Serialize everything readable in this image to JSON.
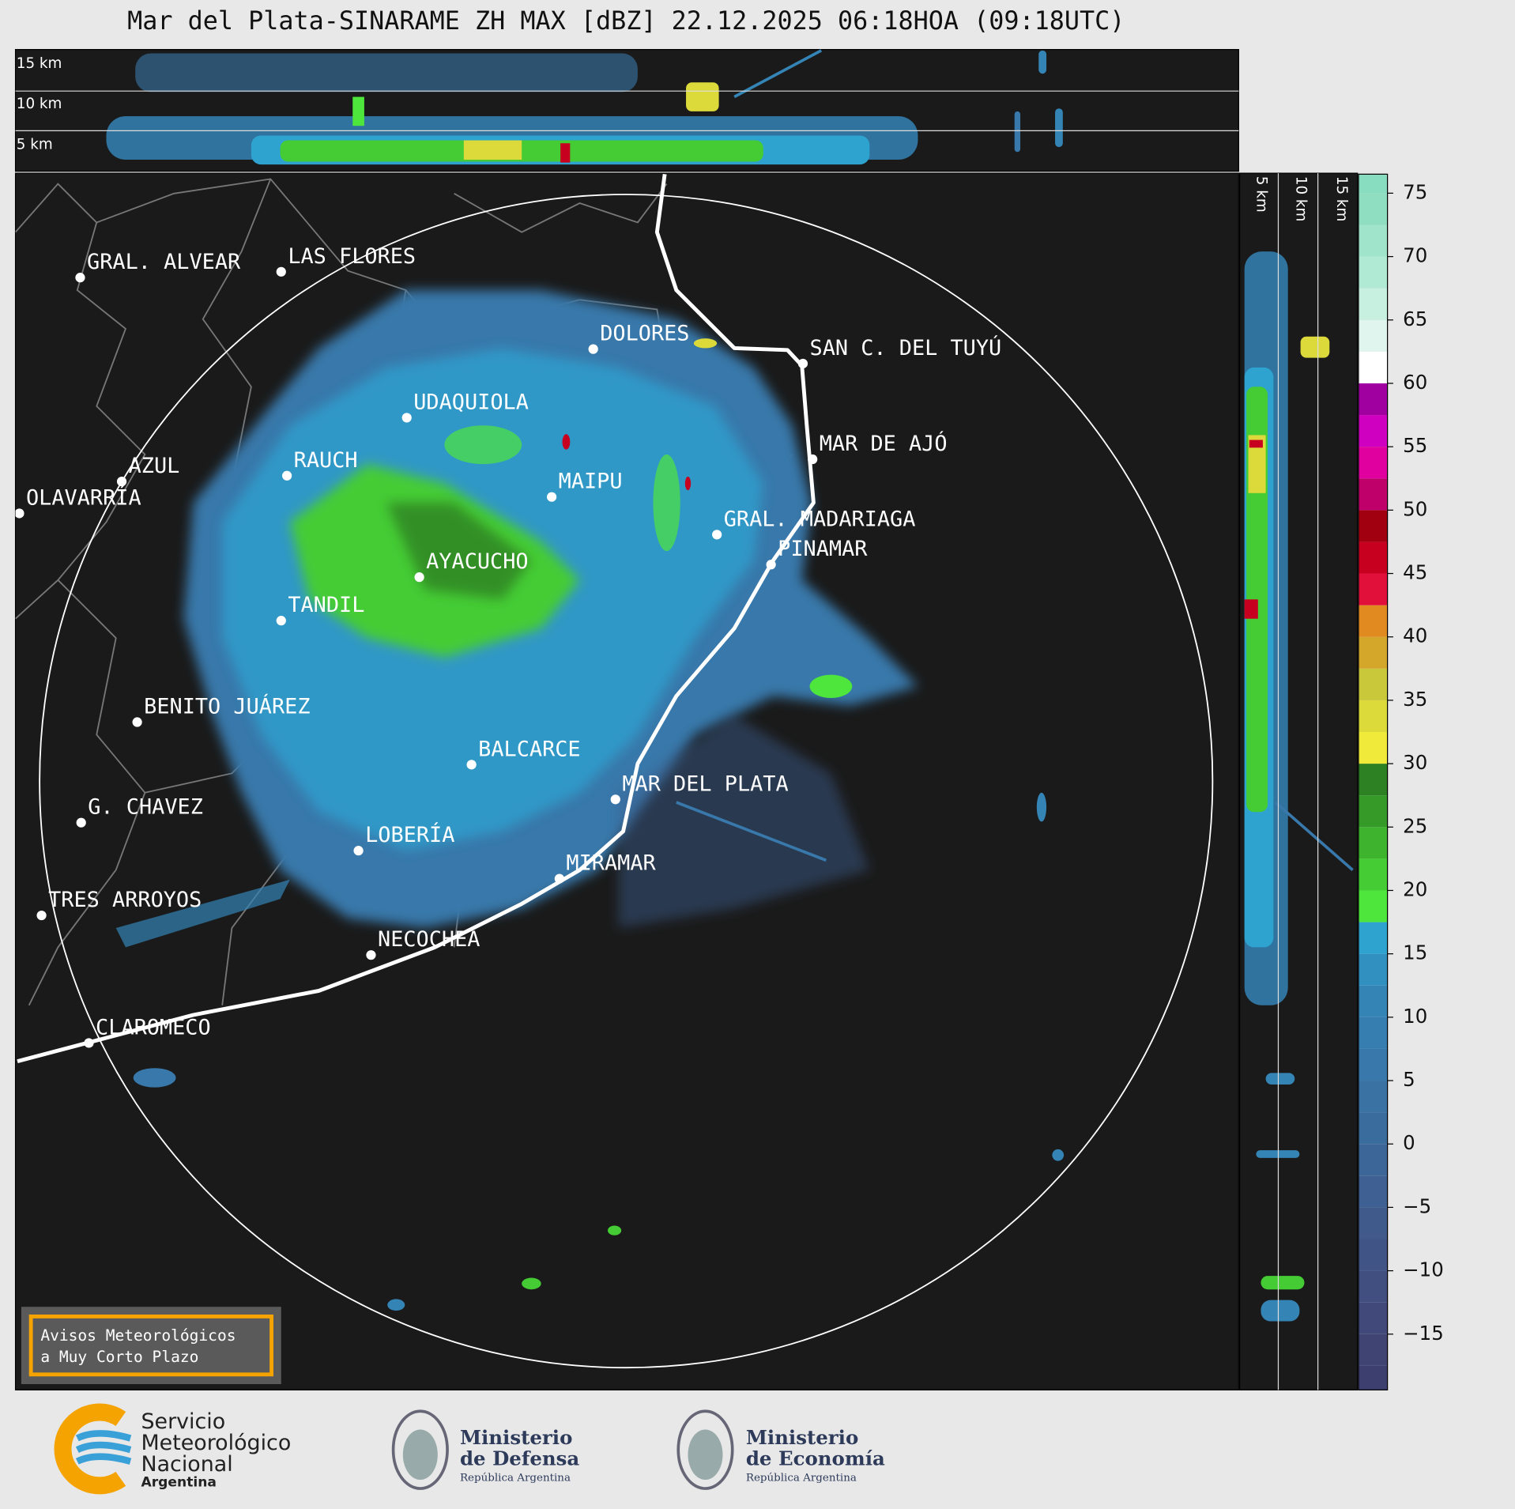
{
  "title": "Mar del Plata-SINARAME ZH MAX [dBZ] 22.12.2025 06:18HOA (09:18UTC)",
  "top_panel_labels": [
    "15 km",
    "10 km",
    "5 km"
  ],
  "side_panel_labels": [
    "5 km",
    "10 km",
    "15 km"
  ],
  "cities": [
    "GRAL. ALVEAR",
    "LAS FLORES",
    "DOLORES",
    "SAN C. DEL TUYÚ",
    "UDAQUIOLA",
    "MAR DE AJÓ",
    "AZUL",
    "RAUCH",
    "MAIPU",
    "OLAVARRÍA",
    "GRAL. MADARIAGA",
    "PINAMAR",
    "AYACUCHO",
    "TANDIL",
    "BENITO JUÁREZ",
    "BALCARCE",
    "MAR DEL PLATA",
    "G. CHAVEZ",
    "LOBERÍA",
    "MIRAMAR",
    "TRES ARROYOS",
    "NECOCHEA",
    "CLAROMECO"
  ],
  "notice": [
    "Avisos Meteorológicos",
    "a Muy Corto Plazo"
  ],
  "colorbar": {
    "lim": [
      -19.4,
      76.5
    ],
    "ticks": [
      75,
      70,
      65,
      60,
      55,
      50,
      45,
      40,
      35,
      30,
      25,
      20,
      15,
      10,
      5,
      0,
      {
        "value": -5,
        "label": "−5"
      },
      {
        "value": -10,
        "label": "−10"
      },
      {
        "value": -15,
        "label": "−15"
      }
    ],
    "bands": [
      {
        "from": -20,
        "color": "#3d3f6e"
      },
      {
        "from": -17.5,
        "color": "#3f4472"
      },
      {
        "from": -15,
        "color": "#40497a"
      },
      {
        "from": -12.5,
        "color": "#414e80"
      },
      {
        "from": -10,
        "color": "#405485"
      },
      {
        "from": -7.5,
        "color": "#3f5a8b"
      },
      {
        "from": -5,
        "color": "#3e6092"
      },
      {
        "from": -2.5,
        "color": "#3d6698"
      },
      {
        "from": 0,
        "color": "#3b6c9e"
      },
      {
        "from": 2.5,
        "color": "#3a72a4"
      },
      {
        "from": 5,
        "color": "#3878aa"
      },
      {
        "from": 7.5,
        "color": "#367eb0"
      },
      {
        "from": 10,
        "color": "#3484b6"
      },
      {
        "from": 12.5,
        "color": "#3290c0"
      },
      {
        "from": 15,
        "color": "#2fa3d0"
      },
      {
        "from": 17.5,
        "color": "#4ee53c"
      },
      {
        "from": 20,
        "color": "#45cc35"
      },
      {
        "from": 22.5,
        "color": "#3db32e"
      },
      {
        "from": 25,
        "color": "#359a28"
      },
      {
        "from": 27.5,
        "color": "#2d8122"
      },
      {
        "from": 30,
        "color": "#f0ea3a"
      },
      {
        "from": 32.5,
        "color": "#dcd93a"
      },
      {
        "from": 35,
        "color": "#c8c83a"
      },
      {
        "from": 37.5,
        "color": "#d4a62a"
      },
      {
        "from": 40,
        "color": "#e08a20"
      },
      {
        "from": 42.5,
        "color": "#e0103a"
      },
      {
        "from": 45,
        "color": "#c80020"
      },
      {
        "from": 47.5,
        "color": "#a00010"
      },
      {
        "from": 50,
        "color": "#c0006a"
      },
      {
        "from": 52.5,
        "color": "#e000a0"
      },
      {
        "from": 55,
        "color": "#d000c0"
      },
      {
        "from": 57.5,
        "color": "#a000a0"
      },
      {
        "from": 60,
        "color": "#ffffff"
      },
      {
        "from": 62.5,
        "color": "#e0f5ee"
      },
      {
        "from": 65,
        "color": "#c8f0e0"
      },
      {
        "from": 67.5,
        "color": "#b0ead5"
      },
      {
        "from": 70,
        "color": "#a0e4cc"
      },
      {
        "from": 72.5,
        "color": "#90dec2"
      },
      {
        "from": 75,
        "color": "#88dcc0"
      }
    ]
  },
  "logos": {
    "smn": [
      "Servicio",
      "Meteorológico",
      "Nacional",
      "Argentina"
    ],
    "defensa": [
      "Ministerio",
      "de Defensa",
      "República Argentina"
    ],
    "economia": [
      "Ministerio",
      "de Economía",
      "República Argentina"
    ]
  }
}
